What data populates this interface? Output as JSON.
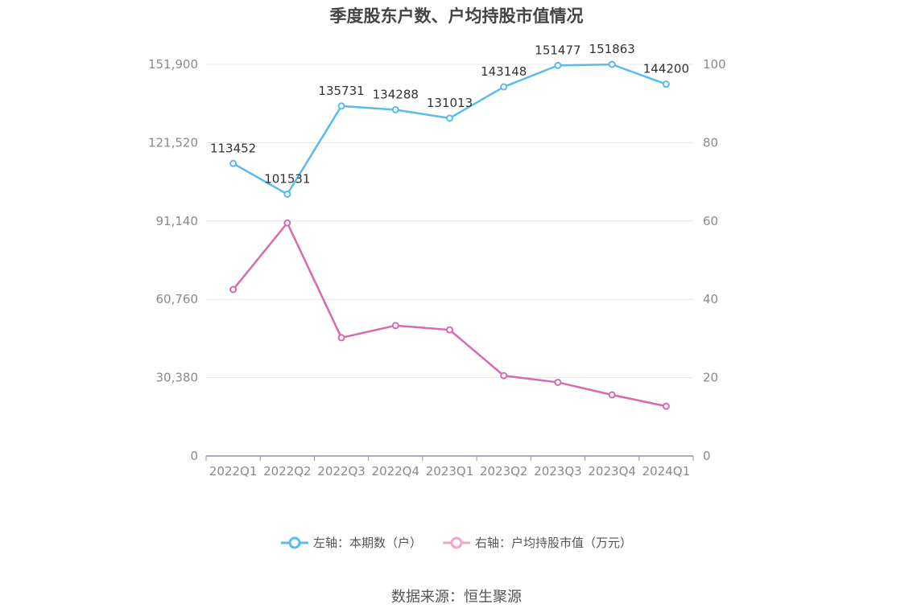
{
  "chart_data": {
    "type": "line",
    "title": "季度股东户数、户均持股市值情况",
    "categories": [
      "2022Q1",
      "2022Q2",
      "2022Q3",
      "2022Q4",
      "2023Q1",
      "2023Q2",
      "2023Q3",
      "2023Q4",
      "2024Q1"
    ],
    "series": [
      {
        "name": "左轴：本期数（户）",
        "axis": "left",
        "color": "#5bbcec",
        "values": [
          113452,
          101531,
          135731,
          134288,
          131013,
          143148,
          151477,
          151863,
          144200
        ],
        "data_labels": [
          "113452",
          "101531",
          "135731",
          "134288",
          "131013",
          "143148",
          "151477",
          "151863",
          "144200"
        ]
      },
      {
        "name": "右轴：户均持股市值（万元）",
        "axis": "right",
        "color": "#d76aab",
        "values": [
          42.5,
          59.5,
          30.2,
          33.3,
          32.2,
          20.5,
          18.8,
          15.6,
          12.7
        ]
      }
    ],
    "y_left": {
      "range": [
        0,
        151900
      ],
      "ticks": [
        "0",
        "30,380",
        "60,760",
        "91,140",
        "121,520",
        "151,900"
      ]
    },
    "y_right": {
      "range": [
        0,
        100
      ],
      "ticks": [
        "0",
        "20",
        "40",
        "60",
        "80",
        "100"
      ]
    },
    "grid": true,
    "legend_position": "bottom"
  },
  "source_note": "数据来源：恒生聚源"
}
